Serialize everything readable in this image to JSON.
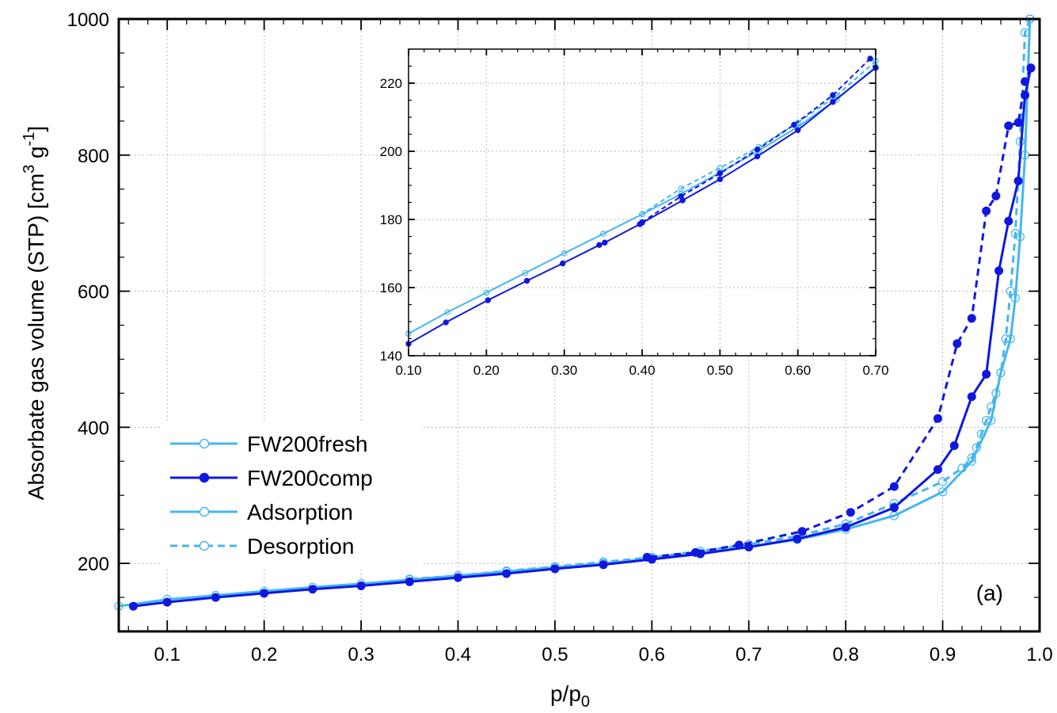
{
  "chart_data": [
    {
      "id": "main",
      "type": "line",
      "xlabel": "p/p",
      "xlabel_sub": "0",
      "ylabel": "Absorbate gas volume (STP) [cm",
      "ylabel_sup1": "3",
      "ylabel_mid": " g",
      "ylabel_sup2": "-1",
      "ylabel_end": "]",
      "xlim": [
        0.05,
        1.0
      ],
      "ylim": [
        100,
        1000
      ],
      "x_ticks": [
        {
          "v": 0.1,
          "label": "0.1"
        },
        {
          "v": 0.2,
          "label": "0.2"
        },
        {
          "v": 0.3,
          "label": "0.3"
        },
        {
          "v": 0.4,
          "label": "0.4"
        },
        {
          "v": 0.5,
          "label": "0.5"
        },
        {
          "v": 0.6,
          "label": "0.6"
        },
        {
          "v": 0.7,
          "label": "0.7"
        },
        {
          "v": 0.8,
          "label": "0.8"
        },
        {
          "v": 0.9,
          "label": "0.9"
        },
        {
          "v": 1.0,
          "label": "1.0"
        }
      ],
      "y_ticks": [
        {
          "v": 200,
          "label": "200"
        },
        {
          "v": 400,
          "label": "400"
        },
        {
          "v": 600,
          "label": "600"
        },
        {
          "v": 800,
          "label": "800"
        },
        {
          "v": 1000,
          "label": "1000"
        }
      ],
      "grid": true,
      "panel_label": "(a)",
      "legend": {
        "position": "lower-left",
        "entries": [
          {
            "label": "FW200fresh",
            "color": "#45b6ef",
            "marker": "open-circle",
            "dash": "solid"
          },
          {
            "label": "FW200comp",
            "color": "#1018e0",
            "marker": "filled-circle",
            "dash": "solid"
          },
          {
            "label": "Adsorption",
            "color": "#45b6ef",
            "marker": "open-circle",
            "dash": "solid"
          },
          {
            "label": "Desorption",
            "color": "#45b6ef",
            "marker": "open-circle",
            "dash": "dashed"
          }
        ]
      },
      "series": [
        {
          "name": "FW200fresh Adsorption",
          "color": "#45b6ef",
          "marker": "open",
          "dash": "solid",
          "x": [
            0.05,
            0.1,
            0.15,
            0.2,
            0.25,
            0.3,
            0.35,
            0.4,
            0.45,
            0.5,
            0.55,
            0.6,
            0.65,
            0.7,
            0.75,
            0.8,
            0.85,
            0.9,
            0.93,
            0.95,
            0.96,
            0.97,
            0.975,
            0.98,
            0.985,
            0.99
          ],
          "y": [
            137,
            147,
            153,
            159,
            165,
            170,
            176,
            182,
            188,
            194,
            200,
            207,
            215,
            224,
            235,
            250,
            270,
            305,
            350,
            410,
            480,
            530,
            590,
            680,
            800,
            1000
          ]
        },
        {
          "name": "FW200fresh Desorption",
          "color": "#45b6ef",
          "marker": "open",
          "dash": "dashed",
          "x": [
            0.99,
            0.985,
            0.98,
            0.975,
            0.97,
            0.965,
            0.96,
            0.955,
            0.95,
            0.945,
            0.94,
            0.935,
            0.93,
            0.92,
            0.9,
            0.85,
            0.8,
            0.75,
            0.7,
            0.65,
            0.6,
            0.55,
            0.5,
            0.45,
            0.4,
            0.35
          ],
          "y": [
            1000,
            980,
            820,
            685,
            600,
            530,
            480,
            450,
            430,
            410,
            390,
            370,
            355,
            340,
            320,
            288,
            258,
            240,
            228,
            218,
            209,
            202,
            195,
            189,
            182,
            177
          ]
        },
        {
          "name": "FW200comp Adsorption",
          "color": "#1018e0",
          "marker": "filled",
          "dash": "solid",
          "x": [
            0.065,
            0.1,
            0.15,
            0.2,
            0.25,
            0.3,
            0.35,
            0.4,
            0.45,
            0.5,
            0.55,
            0.6,
            0.65,
            0.7,
            0.75,
            0.8,
            0.85,
            0.895,
            0.912,
            0.93,
            0.945,
            0.958,
            0.968,
            0.978,
            0.985,
            0.991
          ],
          "y": [
            137,
            143,
            150,
            156,
            162,
            167,
            173,
            179,
            185,
            192,
            198,
            206,
            214,
            224,
            236,
            253,
            282,
            338,
            373,
            445,
            478,
            630,
            703,
            762,
            888,
            928
          ]
        },
        {
          "name": "FW200comp Desorption",
          "color": "#1018e0",
          "marker": "filled",
          "dash": "dashed",
          "x": [
            0.991,
            0.985,
            0.978,
            0.968,
            0.955,
            0.945,
            0.93,
            0.915,
            0.895,
            0.85,
            0.805,
            0.755,
            0.69,
            0.645,
            0.595
          ],
          "y": [
            928,
            908,
            848,
            843,
            740,
            718,
            560,
            523,
            413,
            313,
            275,
            247,
            227,
            216,
            209
          ]
        }
      ]
    },
    {
      "id": "inset",
      "type": "line",
      "xlim": [
        0.1,
        0.7
      ],
      "ylim": [
        140,
        230
      ],
      "x_ticks": [
        {
          "v": 0.1,
          "label": "0.10"
        },
        {
          "v": 0.2,
          "label": "0.20"
        },
        {
          "v": 0.3,
          "label": "0.30"
        },
        {
          "v": 0.4,
          "label": "0.40"
        },
        {
          "v": 0.5,
          "label": "0.50"
        },
        {
          "v": 0.6,
          "label": "0.60"
        },
        {
          "v": 0.7,
          "label": "0.70"
        }
      ],
      "y_ticks": [
        {
          "v": 140,
          "label": "140"
        },
        {
          "v": 160,
          "label": "160"
        },
        {
          "v": 180,
          "label": "180"
        },
        {
          "v": 200,
          "label": "200"
        },
        {
          "v": 220,
          "label": "220"
        }
      ],
      "grid": true,
      "series": [
        {
          "name": "FW200fresh Adsorption",
          "color": "#45b6ef",
          "marker": "open",
          "dash": "solid",
          "x": [
            0.1,
            0.15,
            0.2,
            0.25,
            0.3,
            0.35,
            0.4,
            0.45,
            0.5,
            0.55,
            0.6,
            0.65,
            0.7
          ],
          "y": [
            146.5,
            152.8,
            158.5,
            164.3,
            170.1,
            175.8,
            181.5,
            187.5,
            193.8,
            200.2,
            207.2,
            215.2,
            224.8
          ]
        },
        {
          "name": "FW200fresh Desorption",
          "color": "#45b6ef",
          "marker": "open",
          "dash": "dashed",
          "x": [
            0.7,
            0.65,
            0.6,
            0.55,
            0.5,
            0.45,
            0.4
          ],
          "y": [
            226.5,
            216.4,
            208.4,
            201.3,
            195.1,
            189.1,
            181.6
          ]
        },
        {
          "name": "FW200comp Adsorption",
          "color": "#1018e0",
          "marker": "filled",
          "dash": "solid",
          "x": [
            0.1,
            0.148,
            0.202,
            0.252,
            0.298,
            0.345,
            0.352,
            0.397,
            0.4,
            0.452,
            0.5,
            0.548,
            0.6,
            0.645,
            0.7
          ],
          "y": [
            143.5,
            149.8,
            156.3,
            162,
            167.1,
            172.5,
            173.2,
            178.6,
            179,
            185.6,
            191.8,
            198.5,
            206.2,
            214.5,
            224.5
          ]
        },
        {
          "name": "FW200comp Desorption",
          "color": "#1018e0",
          "marker": "filled",
          "dash": "dashed",
          "x": [
            0.693,
            0.645,
            0.595,
            0.548,
            0.5,
            0.45,
            0.4
          ],
          "y": [
            227.2,
            216.5,
            207.8,
            200.5,
            193.5,
            186.8,
            179.2
          ]
        }
      ]
    }
  ]
}
